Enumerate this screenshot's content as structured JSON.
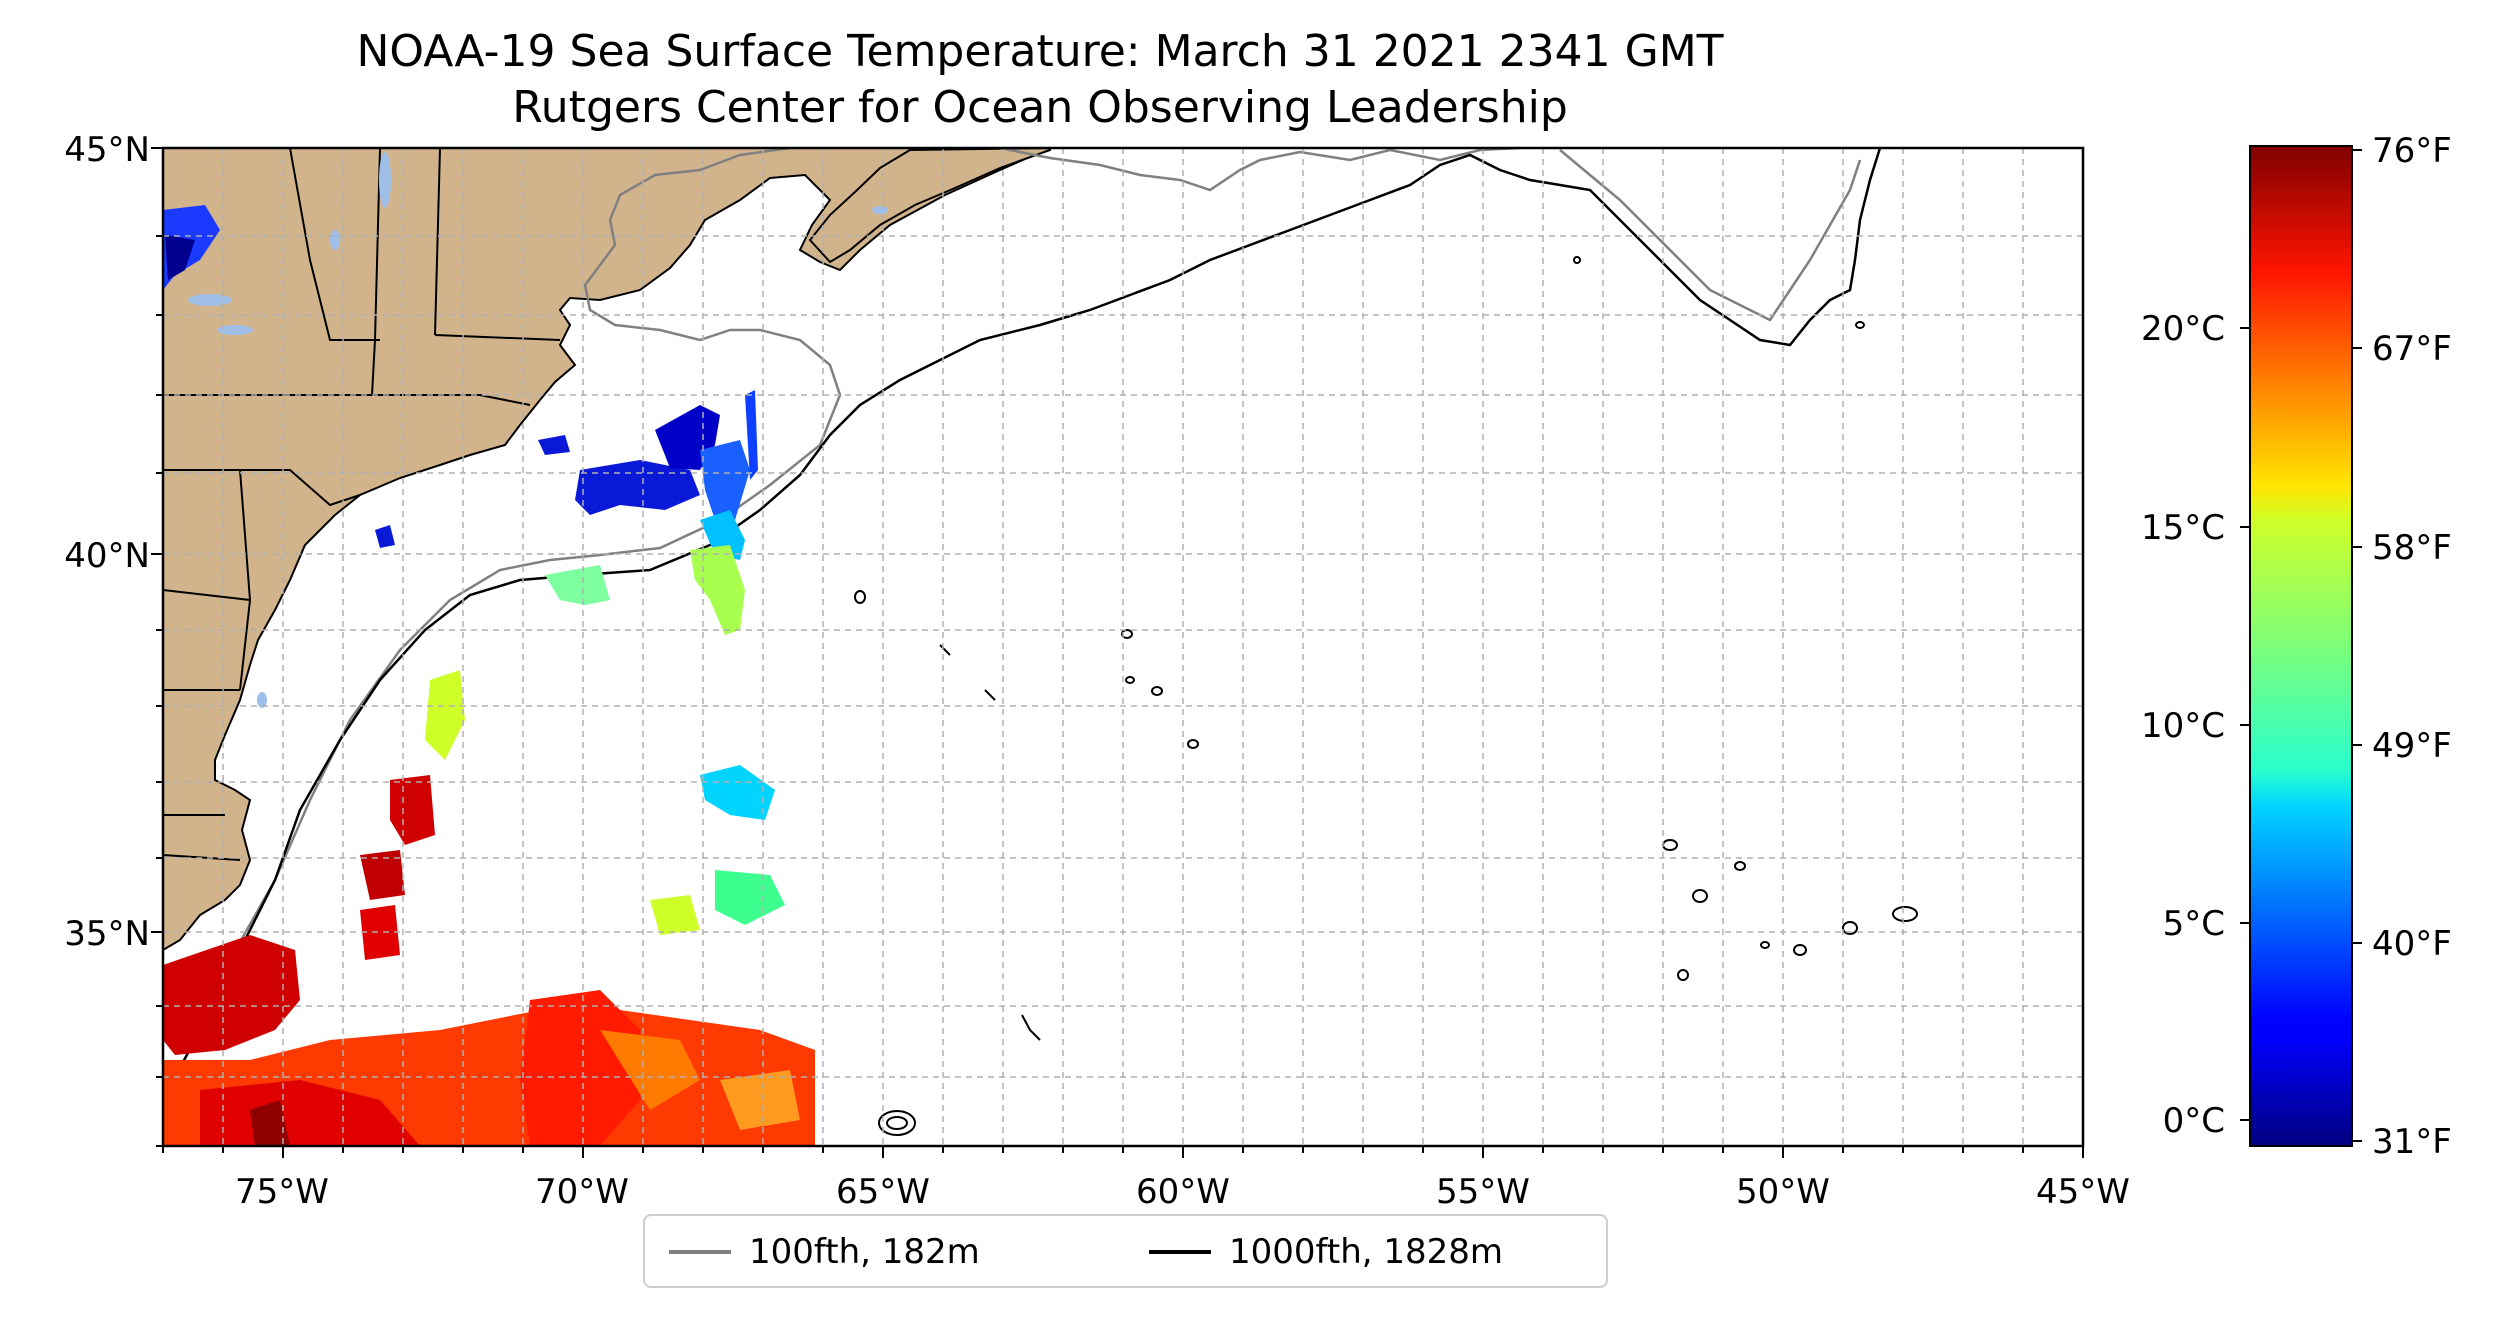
{
  "title": {
    "line1": "NOAA-19 Sea Surface Temperature: March 31 2021 2341 GMT",
    "line2": "Rutgers Center for Ocean Observing Leadership"
  },
  "map": {
    "lat_labels": [
      "45°N",
      "40°N",
      "35°N"
    ],
    "lon_labels": [
      "75°W",
      "70°W",
      "65°W",
      "60°W",
      "55°W",
      "50°W",
      "45°W"
    ],
    "land_color": "#d2b48c",
    "lake_color": "#a0bfe8",
    "grid": "dashed"
  },
  "legend": {
    "items": [
      {
        "label": "100fth, 182m",
        "color": "#808080"
      },
      {
        "label": "1000fth, 1828m",
        "color": "#000000"
      }
    ]
  },
  "colorbar": {
    "colormap": "jet",
    "celsius_labels": [
      "20°C",
      "15°C",
      "10°C",
      "5°C",
      "0°C"
    ],
    "fahrenheit_labels": [
      "76°F",
      "67°F",
      "58°F",
      "49°F",
      "40°F",
      "31°F"
    ]
  }
}
